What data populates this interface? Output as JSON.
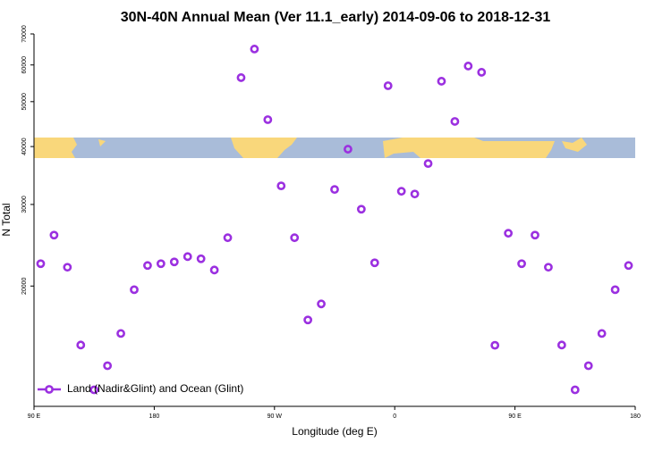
{
  "chart_data": {
    "type": "scatter",
    "title": "30N-40N Annual Mean (Ver 11.1_early)   2014-09-06 to 2018-12-31",
    "x_label": "Longitude (deg E)",
    "y_label": "N Total",
    "yscale": "log",
    "xlim": [
      90,
      540
    ],
    "ylim": [
      11000,
      70000
    ],
    "xticks": [
      {
        "value": 90,
        "label": "90 E"
      },
      180,
      {
        "value": 270,
        "label": "90 W"
      },
      {
        "value": 360,
        "label": "0"
      },
      {
        "value": 450,
        "label": "90 E"
      },
      {
        "value": 540,
        "label": "180"
      }
    ],
    "yticks": [
      20000,
      30000,
      40000,
      50000,
      60000,
      70000
    ],
    "legend": "bottom-left",
    "series": [
      {
        "name": "Land (Nadir&Glint) and Ocean (Glint)",
        "color": "#9b30e0",
        "x": [
          95,
          105,
          115,
          125,
          135,
          145,
          155,
          165,
          175,
          185,
          195,
          205,
          215,
          225,
          235,
          245,
          255,
          265,
          275,
          285,
          295,
          305,
          315,
          325,
          335,
          345,
          355,
          365,
          375,
          385,
          395,
          405,
          415,
          425,
          435,
          445,
          455,
          465,
          475,
          485,
          495,
          505,
          515,
          525,
          535
        ],
        "values": [
          22350,
          25760,
          21960,
          14920,
          11940,
          13460,
          15800,
          19640,
          22150,
          22350,
          22550,
          23150,
          22900,
          21660,
          25430,
          56340,
          64940,
          45720,
          32900,
          25430,
          16900,
          18300,
          32320,
          39480,
          29300,
          22450,
          54120,
          32030,
          31600,
          36760,
          55340,
          45320,
          59680,
          57860,
          14900,
          26000,
          22350,
          25760,
          21960,
          14920,
          11940,
          13460,
          15800,
          19640,
          22150
        ]
      }
    ]
  }
}
